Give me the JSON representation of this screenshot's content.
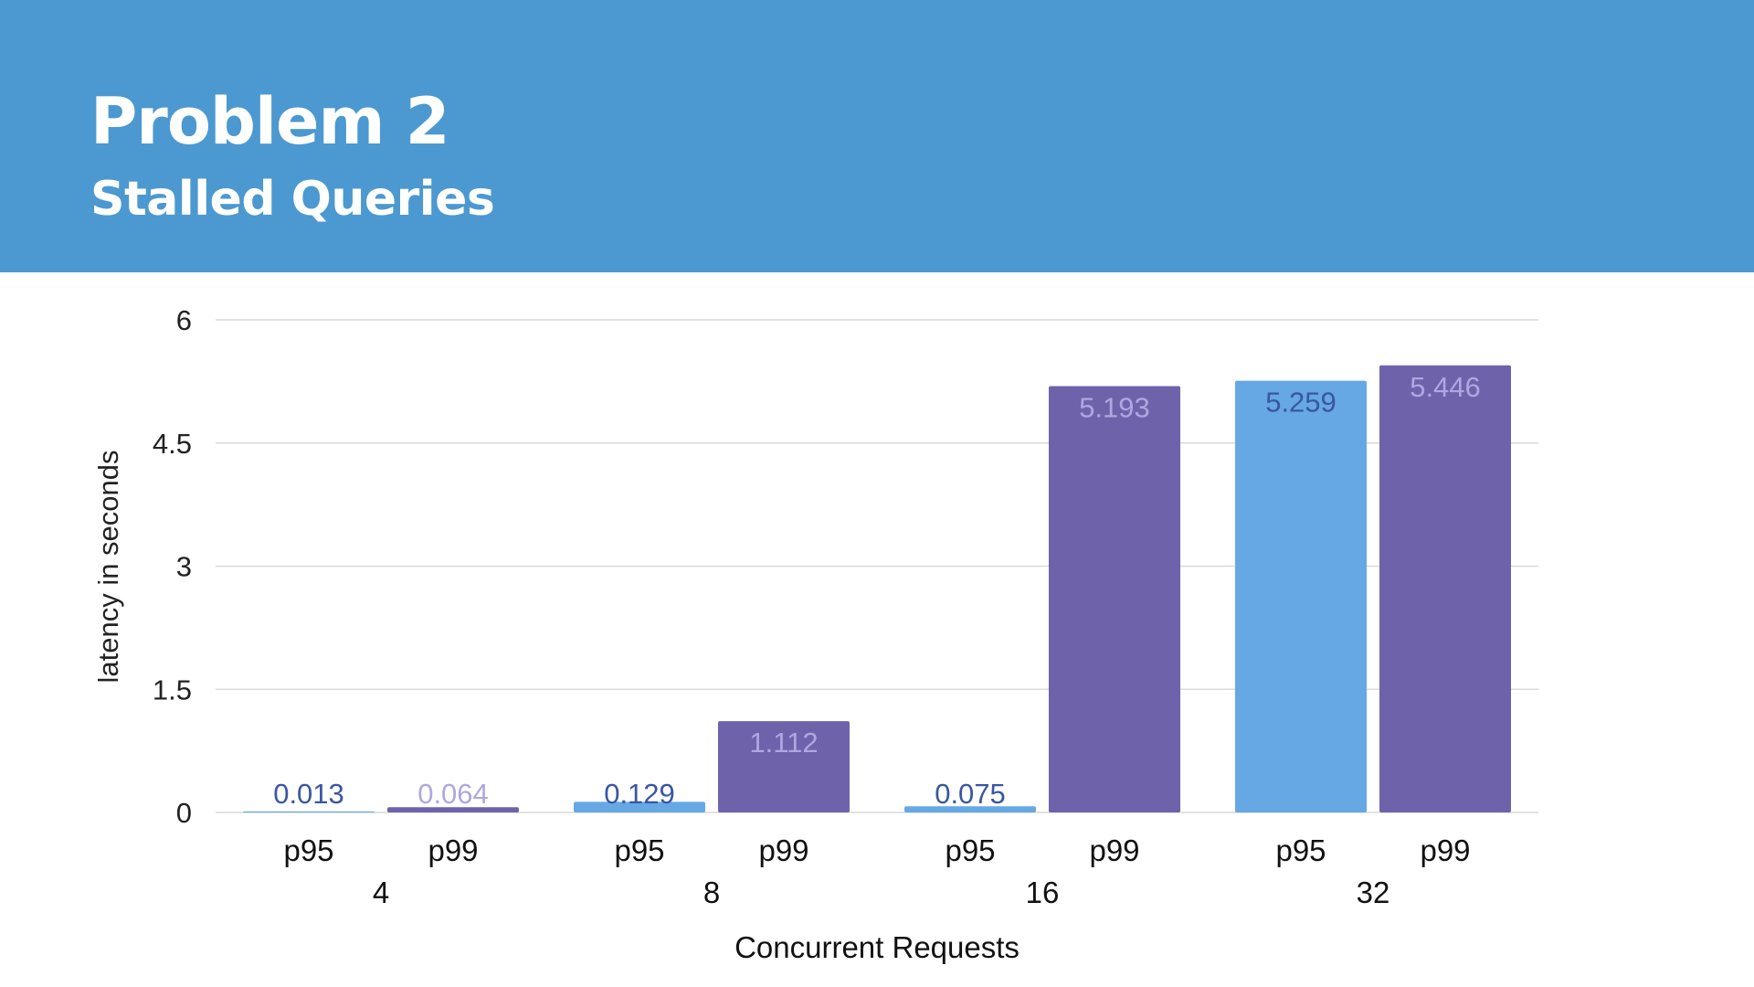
{
  "slide": {
    "title": "Problem 2",
    "subtitle": "Stalled Queries"
  },
  "colors": {
    "header_bg": "#4b99d0",
    "p95": "#65a8e3",
    "p99": "#6e63ab",
    "p95_label": "#3a56a3",
    "p99_label": "#b0a6e0",
    "grid": "#d9d9d9"
  },
  "chart_data": {
    "type": "bar",
    "title": "",
    "xlabel": "Concurrent Requests",
    "ylabel": "latency in seconds",
    "ylim": [
      0,
      6
    ],
    "yticks": [
      "0",
      "1.5",
      "3",
      "4.5",
      "6"
    ],
    "grid": true,
    "categories": [
      "4",
      "8",
      "16",
      "32"
    ],
    "series": [
      {
        "name": "p95",
        "values": [
          0.013,
          0.129,
          0.075,
          5.259
        ],
        "labels": [
          "0.013",
          "0.129",
          "0.075",
          "5.259"
        ]
      },
      {
        "name": "p99",
        "values": [
          0.064,
          1.112,
          5.193,
          5.446
        ],
        "labels": [
          "0.064",
          "1.112",
          "5.193",
          "5.446"
        ]
      }
    ]
  }
}
